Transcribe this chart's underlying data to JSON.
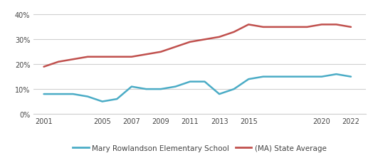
{
  "school_years": [
    2001,
    2002,
    2003,
    2004,
    2005,
    2006,
    2007,
    2008,
    2009,
    2010,
    2011,
    2012,
    2013,
    2014,
    2015,
    2016,
    2017,
    2018,
    2019,
    2020,
    2021,
    2022
  ],
  "school_values": [
    0.08,
    0.08,
    0.08,
    0.07,
    0.05,
    0.06,
    0.11,
    0.1,
    0.1,
    0.11,
    0.13,
    0.13,
    0.08,
    0.1,
    0.14,
    0.15,
    0.15,
    0.15,
    0.15,
    0.15,
    0.16,
    0.15
  ],
  "state_years": [
    2001,
    2002,
    2003,
    2004,
    2005,
    2006,
    2007,
    2008,
    2009,
    2010,
    2011,
    2012,
    2013,
    2014,
    2015,
    2016,
    2017,
    2018,
    2019,
    2020,
    2021,
    2022
  ],
  "state_values": [
    0.19,
    0.21,
    0.22,
    0.23,
    0.23,
    0.23,
    0.23,
    0.24,
    0.25,
    0.27,
    0.29,
    0.3,
    0.31,
    0.33,
    0.36,
    0.35,
    0.35,
    0.35,
    0.35,
    0.36,
    0.36,
    0.35
  ],
  "school_color": "#4bacc6",
  "state_color": "#c0504d",
  "school_label": "Mary Rowlandson Elementary School",
  "state_label": "(MA) State Average",
  "yticks": [
    0.0,
    0.1,
    0.2,
    0.3,
    0.4
  ],
  "ytick_labels": [
    "0%",
    "10%",
    "20%",
    "30%",
    "40%"
  ],
  "xticks": [
    2001,
    2005,
    2007,
    2009,
    2011,
    2013,
    2015,
    2020,
    2022
  ],
  "ylim": [
    0.0,
    0.435
  ],
  "xlim": [
    2000.3,
    2023.0
  ],
  "background_color": "#ffffff",
  "grid_color": "#d0d0d0"
}
